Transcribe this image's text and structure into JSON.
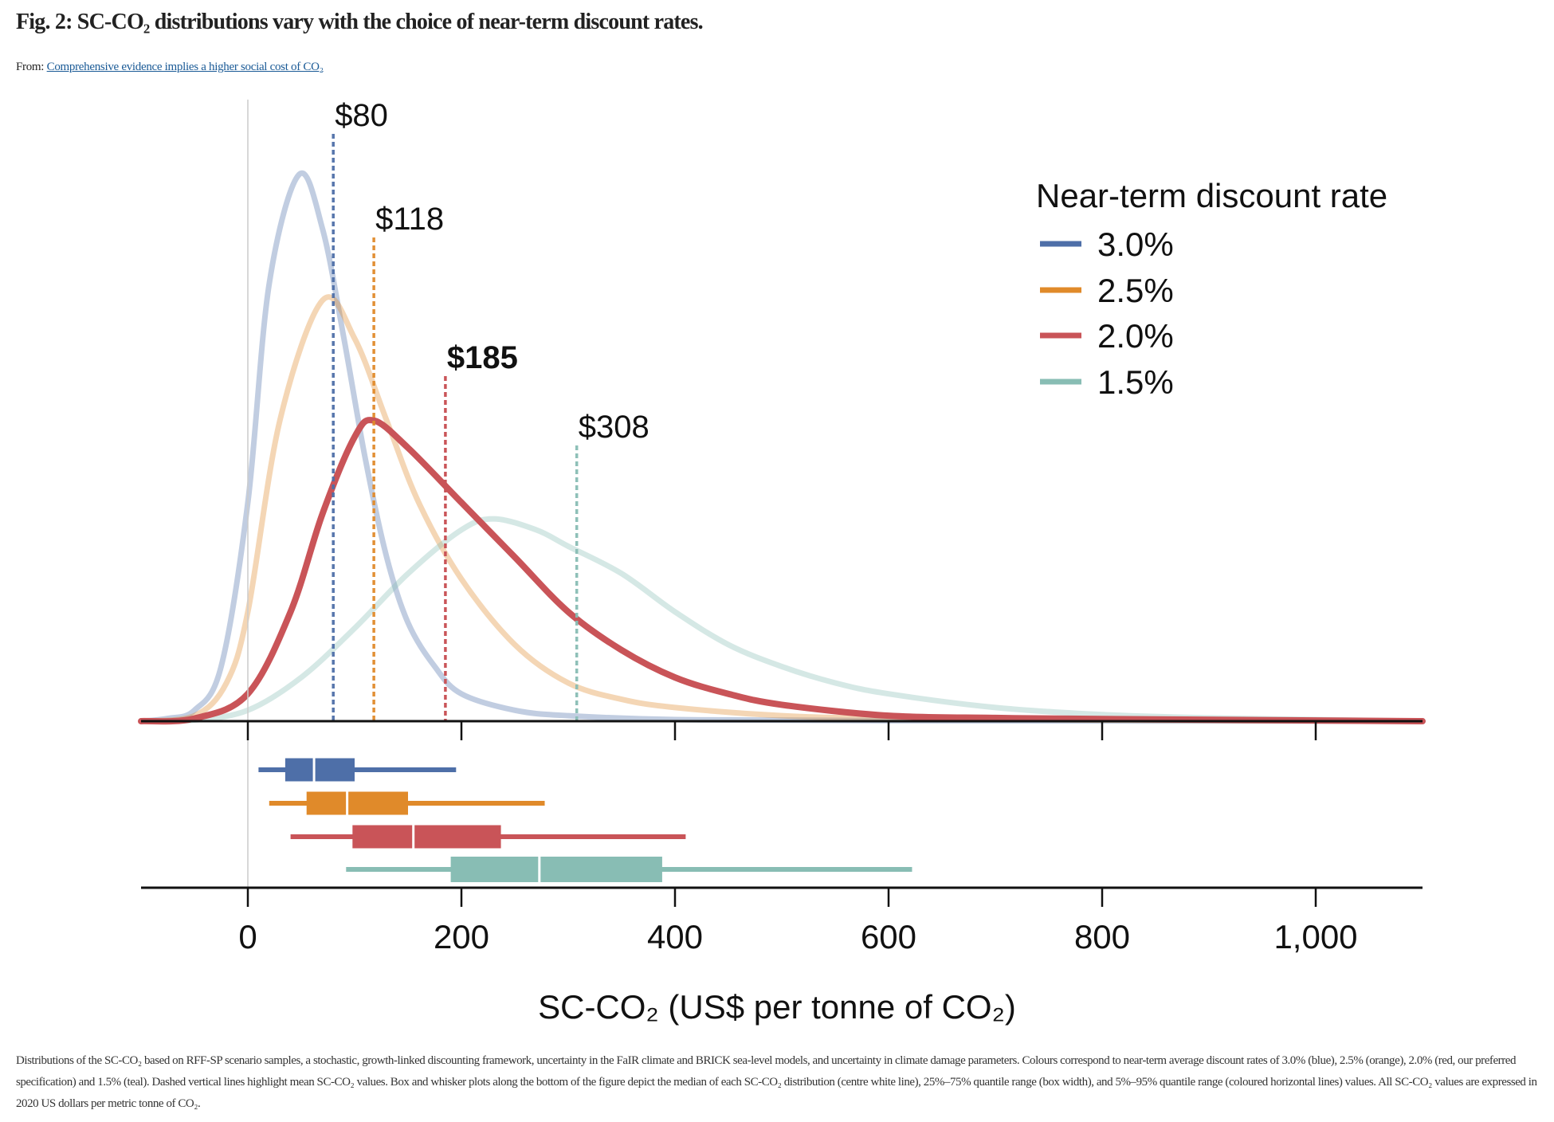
{
  "header": {
    "title": "Fig. 2: SC-CO₂ distributions vary with the choice of near-term discount rates.",
    "from_label": "From:",
    "from_link": "Comprehensive evidence implies a higher social cost of CO₂"
  },
  "caption": "Distributions of the SC-CO₂ based on RFF-SP scenario samples, a stochastic, growth-linked discounting framework, uncertainty in the FaIR climate and BRICK sea-level models, and uncertainty in climate damage parameters. Colours correspond to near-term average discount rates of 3.0% (blue), 2.5% (orange), 2.0% (red, our preferred specification) and 1.5% (teal). Dashed vertical lines highlight mean SC-CO₂ values. Box and whisker plots along the bottom of the figure depict the median of each SC-CO₂ distribution (centre white line), 25%–75% quantile range (box width), and 5%–95% quantile range (coloured horizontal lines) values. All SC-CO₂ values are expressed in 2020 US dollars per metric tonne of CO₂.",
  "chart_data": {
    "type": "line",
    "xlabel": "SC-CO₂ (US$ per tonne of CO₂)",
    "xlim": [
      -100,
      1100
    ],
    "xticks": [
      0,
      200,
      400,
      600,
      800,
      1000
    ],
    "xtick_labels": [
      "0",
      "200",
      "400",
      "600",
      "800",
      "1,000"
    ],
    "grid": false,
    "legend": {
      "title": "Near-term discount rate",
      "placement": "top-right"
    },
    "series": [
      {
        "name": "3.0%",
        "color": "#4e6fa8",
        "faded": true,
        "mean": 80,
        "mean_label": "$80",
        "box": {
          "p5": 10,
          "p25": 35,
          "median": 62,
          "p75": 100,
          "p95": 195
        },
        "density": [
          [
            -100,
            0
          ],
          [
            -75,
            0.005
          ],
          [
            -50,
            0.02
          ],
          [
            -25,
            0.1
          ],
          [
            0,
            0.4
          ],
          [
            20,
            0.8
          ],
          [
            48,
            1.0
          ],
          [
            70,
            0.9
          ],
          [
            90,
            0.7
          ],
          [
            110,
            0.48
          ],
          [
            130,
            0.3
          ],
          [
            150,
            0.18
          ],
          [
            175,
            0.1
          ],
          [
            200,
            0.05
          ],
          [
            250,
            0.02
          ],
          [
            300,
            0.01
          ],
          [
            400,
            0.003
          ],
          [
            600,
            0.001
          ],
          [
            1100,
            0
          ]
        ]
      },
      {
        "name": "2.5%",
        "color": "#e08a2a",
        "faded": true,
        "mean": 118,
        "mean_label": "$118",
        "box": {
          "p5": 20,
          "p25": 55,
          "median": 93,
          "p75": 150,
          "p95": 278
        },
        "density": [
          [
            -100,
            0
          ],
          [
            -50,
            0.01
          ],
          [
            -20,
            0.07
          ],
          [
            0,
            0.2
          ],
          [
            30,
            0.55
          ],
          [
            70,
            0.77
          ],
          [
            100,
            0.7
          ],
          [
            130,
            0.55
          ],
          [
            160,
            0.4
          ],
          [
            200,
            0.26
          ],
          [
            250,
            0.14
          ],
          [
            300,
            0.07
          ],
          [
            350,
            0.04
          ],
          [
            400,
            0.025
          ],
          [
            500,
            0.01
          ],
          [
            600,
            0.005
          ],
          [
            800,
            0.002
          ],
          [
            1100,
            0
          ]
        ]
      },
      {
        "name": "2.0%",
        "color": "#c95458",
        "faded": false,
        "mean": 185,
        "mean_label": "$185",
        "box": {
          "p5": 40,
          "p25": 98,
          "median": 155,
          "p75": 237,
          "p95": 410
        },
        "density": [
          [
            -100,
            0
          ],
          [
            -50,
            0.005
          ],
          [
            0,
            0.05
          ],
          [
            40,
            0.2
          ],
          [
            70,
            0.38
          ],
          [
            100,
            0.52
          ],
          [
            118,
            0.55
          ],
          [
            150,
            0.5
          ],
          [
            200,
            0.4
          ],
          [
            250,
            0.3
          ],
          [
            300,
            0.2
          ],
          [
            350,
            0.13
          ],
          [
            400,
            0.08
          ],
          [
            450,
            0.05
          ],
          [
            500,
            0.03
          ],
          [
            600,
            0.01
          ],
          [
            700,
            0.006
          ],
          [
            800,
            0.004
          ],
          [
            1100,
            0
          ]
        ]
      },
      {
        "name": "1.5%",
        "color": "#88bdb4",
        "faded": true,
        "mean": 308,
        "mean_label": "$308",
        "box": {
          "p5": 92,
          "p25": 190,
          "median": 273,
          "p75": 388,
          "p95": 622
        },
        "density": [
          [
            -100,
            0
          ],
          [
            -50,
            0.002
          ],
          [
            0,
            0.02
          ],
          [
            50,
            0.08
          ],
          [
            100,
            0.17
          ],
          [
            150,
            0.27
          ],
          [
            200,
            0.35
          ],
          [
            230,
            0.37
          ],
          [
            270,
            0.35
          ],
          [
            300,
            0.32
          ],
          [
            350,
            0.27
          ],
          [
            400,
            0.2
          ],
          [
            450,
            0.14
          ],
          [
            500,
            0.1
          ],
          [
            550,
            0.07
          ],
          [
            600,
            0.05
          ],
          [
            700,
            0.025
          ],
          [
            800,
            0.012
          ],
          [
            900,
            0.006
          ],
          [
            1000,
            0.003
          ],
          [
            1100,
            0
          ]
        ]
      }
    ]
  }
}
